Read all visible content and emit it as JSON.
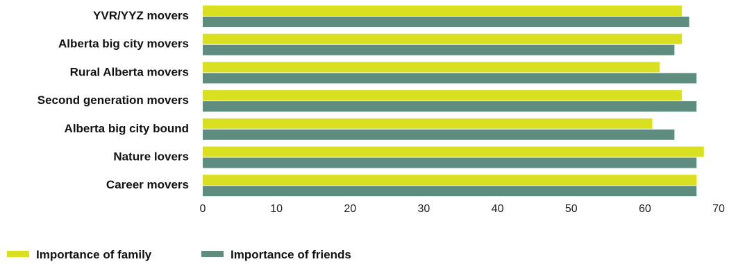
{
  "chart_data": {
    "type": "bar",
    "orientation": "horizontal",
    "categories": [
      "YVR/YYZ movers",
      "Alberta big city movers",
      "Rural Alberta movers",
      "Second generation movers",
      "Alberta big city bound",
      "Nature lovers",
      "Career movers"
    ],
    "series": [
      {
        "name": "Importance of family",
        "color": "#d9e021",
        "values": [
          65,
          65,
          62,
          65,
          61,
          68,
          67
        ]
      },
      {
        "name": "Importance of friends",
        "color": "#5e8c7e",
        "values": [
          66,
          64,
          67,
          67,
          64,
          67,
          67
        ]
      }
    ],
    "x_ticks": [
      "0",
      "10",
      "20",
      "30",
      "40",
      "50",
      "60",
      "70"
    ],
    "xlim": [
      0,
      70
    ],
    "grid": false,
    "legend_position": "bottom-left"
  }
}
